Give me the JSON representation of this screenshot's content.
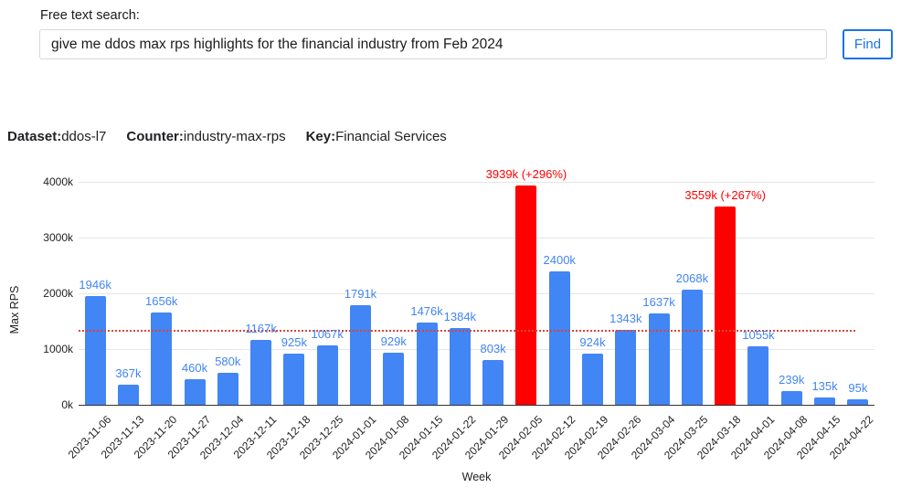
{
  "search": {
    "label": "Free text search:",
    "query": "give me ddos max rps highlights for the financial industry from Feb 2024",
    "button_label": "Find"
  },
  "meta": {
    "dataset_label": "Dataset:",
    "dataset_value": "ddos-l7",
    "counter_label": "Counter:",
    "counter_value": "industry-max-rps",
    "key_label": "Key:",
    "key_value": "Financial Services"
  },
  "colors": {
    "accent_blue": "#1a73e8",
    "text": "#202124",
    "input_border": "#d8d8d8"
  },
  "chart_data": {
    "type": "bar",
    "title": "",
    "xlabel": "Week",
    "ylabel": "Max RPS",
    "y_unit": "k",
    "ylim": [
      0,
      4000
    ],
    "grid": true,
    "y_ticks": [
      {
        "value": 0,
        "label": "0k"
      },
      {
        "value": 1000,
        "label": "1000k"
      },
      {
        "value": 2000,
        "label": "2000k"
      },
      {
        "value": 3000,
        "label": "3000k"
      },
      {
        "value": 4000,
        "label": "4000k"
      }
    ],
    "categories": [
      "2023-11-06",
      "2023-11-13",
      "2023-11-20",
      "2023-11-27",
      "2023-12-04",
      "2023-12-11",
      "2023-12-18",
      "2023-12-25",
      "2024-01-01",
      "2024-01-08",
      "2024-01-15",
      "2024-01-22",
      "2024-01-29",
      "2024-02-05",
      "2024-02-12",
      "2024-02-19",
      "2024-02-26",
      "2024-03-04",
      "2024-03-25",
      "2024-03-18",
      "2024-04-01",
      "2024-04-08",
      "2024-04-15",
      "2024-04-22"
    ],
    "values_k": [
      1946,
      367,
      1656,
      460,
      580,
      1167,
      925,
      1067,
      1791,
      929,
      1476,
      1384,
      803,
      3939,
      2400,
      924,
      1343,
      1637,
      2068,
      3559,
      1055,
      239,
      135,
      95
    ],
    "bar_labels": [
      "1946k",
      "367k",
      "1656k",
      "460k",
      "580k",
      "1167k",
      "925k",
      "1067k",
      "1791k",
      "929k",
      "1476k",
      "1384k",
      "803k",
      "3939k (+296%)",
      "2400k",
      "924k",
      "1343k",
      "1637k",
      "2068k",
      "3559k (+267%)",
      "1055k",
      "239k",
      "135k",
      "95k"
    ],
    "highlighted_indices": [
      13,
      19
    ],
    "mean_line_k": 1331,
    "colors": {
      "bar": "#4285f4",
      "bar_label": "#4285f4",
      "highlight_bar": "#ff0000",
      "highlight_label": "#ff0000",
      "mean_line": "#db4437",
      "grid": "#e6e6e6",
      "axis": "#333333",
      "tick_text": "#222222"
    },
    "legend": "none"
  }
}
